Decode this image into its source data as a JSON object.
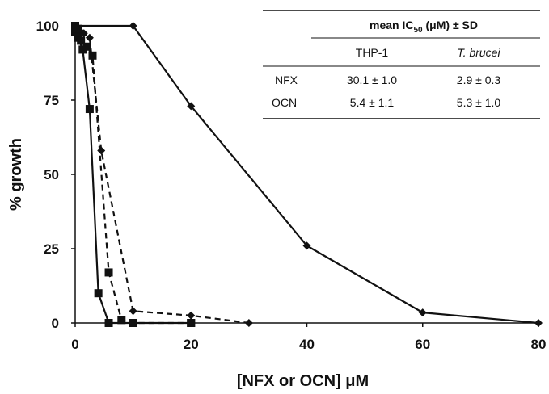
{
  "chart_data": {
    "type": "line",
    "xlabel": "[NFX or OCN] μM",
    "ylabel": "% growth",
    "xlim": [
      0,
      80
    ],
    "ylim": [
      0,
      100
    ],
    "xticks": [
      0,
      20,
      40,
      60,
      80
    ],
    "yticks": [
      0,
      25,
      50,
      75,
      100
    ],
    "grid": false,
    "series": [
      {
        "marker": "diamond",
        "line_style": "solid",
        "color": "#111111",
        "points": [
          [
            0,
            100
          ],
          [
            10,
            100
          ],
          [
            20,
            73
          ],
          [
            40,
            26
          ],
          [
            60,
            3.5
          ],
          [
            80,
            0
          ]
        ]
      },
      {
        "marker": "diamond",
        "line_style": "dashed",
        "color": "#111111",
        "points": [
          [
            0,
            100
          ],
          [
            0.5,
            99
          ],
          [
            1,
            98
          ],
          [
            1.5,
            97.5
          ],
          [
            2.5,
            96
          ],
          [
            4.5,
            58
          ],
          [
            10,
            4
          ],
          [
            20,
            2.5
          ],
          [
            30,
            0
          ]
        ]
      },
      {
        "marker": "square",
        "line_style": "solid",
        "color": "#111111",
        "points": [
          [
            0,
            98
          ],
          [
            0.5,
            96
          ],
          [
            1.3,
            92
          ],
          [
            2.5,
            72
          ],
          [
            4,
            10
          ],
          [
            5.8,
            0
          ],
          [
            10,
            0
          ],
          [
            20,
            0
          ]
        ]
      },
      {
        "marker": "square",
        "line_style": "dashed",
        "color": "#111111",
        "points": [
          [
            0,
            100
          ],
          [
            0.5,
            99
          ],
          [
            1,
            95
          ],
          [
            2,
            93
          ],
          [
            3,
            90
          ],
          [
            5.8,
            17
          ],
          [
            8,
            1
          ],
          [
            10,
            0
          ],
          [
            20,
            0
          ]
        ]
      }
    ],
    "table": {
      "header": "mean IC",
      "header_sub": "50",
      "header_rest": " (μM) ± SD",
      "columns": [
        "THP-1",
        "T. brucei"
      ],
      "rows": [
        {
          "label": "NFX",
          "values": [
            "30.1 ± 1.0",
            "2.9 ± 0.3"
          ]
        },
        {
          "label": "OCN",
          "values": [
            "5.4 ± 1.1",
            "5.3 ± 1.0"
          ]
        }
      ]
    }
  }
}
